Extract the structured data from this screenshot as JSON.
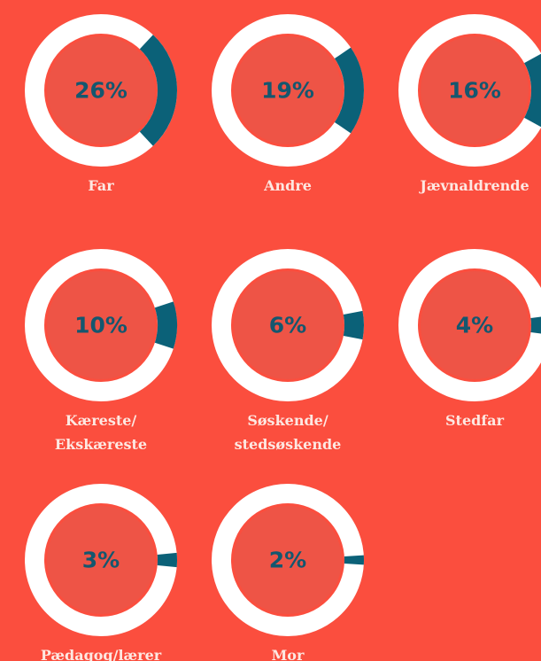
{
  "chart_data": {
    "type": "donut",
    "categories": [
      "Far",
      "Andre",
      "Jævnaldrende",
      "Kæreste/\nEkskæreste",
      "Søskende/\nstedsøskende",
      "Stedfar",
      "Pædagog/lærer",
      "Mor"
    ],
    "values": [
      26,
      19,
      16,
      10,
      6,
      4,
      3,
      2
    ],
    "value_labels": [
      "26%",
      "19%",
      "16%",
      "10%",
      "6%",
      "4%",
      "3%",
      "2%"
    ],
    "color": "#0b6178",
    "ring_color": "#ffffff",
    "inner_color": "#ee5446",
    "background": "#fb4e3e"
  }
}
